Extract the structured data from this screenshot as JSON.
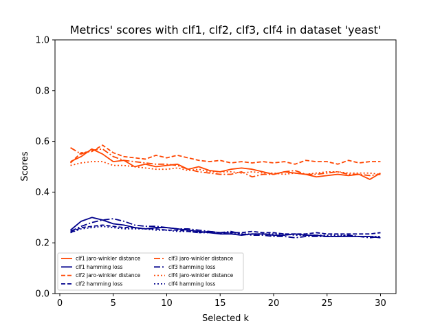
{
  "chart_data": {
    "type": "line",
    "title": "Metrics' scores with clf1, clf2, clf3, clf4 in dataset 'yeast'",
    "xlabel": "Selected k",
    "ylabel": "Scores",
    "xlim": [
      -0.45,
      31.45
    ],
    "ylim": [
      0,
      1.0
    ],
    "xticks": [
      0,
      5,
      10,
      15,
      20,
      25,
      30
    ],
    "yticks": [
      "0.0",
      "0.2",
      "0.4",
      "0.6",
      "0.8",
      "1.0"
    ],
    "legend_position": "lower-left",
    "x": [
      1,
      2,
      3,
      4,
      5,
      6,
      7,
      8,
      9,
      10,
      11,
      12,
      13,
      14,
      15,
      16,
      17,
      18,
      19,
      20,
      21,
      22,
      23,
      24,
      25,
      26,
      27,
      28,
      29,
      30
    ],
    "series": [
      {
        "name": "clf1 jaro-winkler distance",
        "color": "#ff4500",
        "style": "solid",
        "values": [
          0.52,
          0.54,
          0.57,
          0.55,
          0.52,
          0.525,
          0.5,
          0.51,
          0.5,
          0.505,
          0.51,
          0.49,
          0.5,
          0.485,
          0.48,
          0.49,
          0.495,
          0.49,
          0.48,
          0.47,
          0.48,
          0.475,
          0.47,
          0.46,
          0.465,
          0.47,
          0.465,
          0.47,
          0.45,
          0.475
        ]
      },
      {
        "name": "clf1 hamming loss",
        "color": "#00008b",
        "style": "solid",
        "values": [
          0.25,
          0.285,
          0.3,
          0.29,
          0.275,
          0.27,
          0.26,
          0.255,
          0.26,
          0.26,
          0.255,
          0.25,
          0.245,
          0.24,
          0.235,
          0.235,
          0.23,
          0.235,
          0.235,
          0.23,
          0.23,
          0.235,
          0.23,
          0.23,
          0.225,
          0.225,
          0.225,
          0.225,
          0.225,
          0.22
        ]
      },
      {
        "name": "clf2 jaro-winkler distance",
        "color": "#ff4500",
        "style": "dashed",
        "values": [
          0.515,
          0.555,
          0.56,
          0.585,
          0.555,
          0.54,
          0.535,
          0.53,
          0.545,
          0.535,
          0.545,
          0.535,
          0.525,
          0.52,
          0.525,
          0.515,
          0.52,
          0.515,
          0.52,
          0.515,
          0.52,
          0.51,
          0.525,
          0.52,
          0.52,
          0.51,
          0.525,
          0.515,
          0.52,
          0.52
        ]
      },
      {
        "name": "clf2 hamming loss",
        "color": "#00008b",
        "style": "dashed",
        "values": [
          0.24,
          0.26,
          0.265,
          0.27,
          0.265,
          0.26,
          0.26,
          0.255,
          0.255,
          0.25,
          0.25,
          0.245,
          0.24,
          0.245,
          0.24,
          0.24,
          0.24,
          0.245,
          0.24,
          0.24,
          0.235,
          0.235,
          0.235,
          0.24,
          0.235,
          0.235,
          0.235,
          0.235,
          0.235,
          0.24
        ]
      },
      {
        "name": "clf3 jaro-winkler distance",
        "color": "#ff4500",
        "style": "dashdot",
        "values": [
          0.575,
          0.55,
          0.565,
          0.57,
          0.54,
          0.525,
          0.52,
          0.515,
          0.51,
          0.51,
          0.505,
          0.49,
          0.48,
          0.475,
          0.47,
          0.47,
          0.48,
          0.46,
          0.47,
          0.47,
          0.48,
          0.485,
          0.47,
          0.47,
          0.475,
          0.48,
          0.47,
          0.47,
          0.465,
          0.47
        ]
      },
      {
        "name": "clf3 hamming loss",
        "color": "#00008b",
        "style": "dashdot",
        "values": [
          0.245,
          0.265,
          0.28,
          0.29,
          0.295,
          0.285,
          0.27,
          0.265,
          0.265,
          0.26,
          0.255,
          0.255,
          0.25,
          0.245,
          0.24,
          0.245,
          0.235,
          0.23,
          0.23,
          0.225,
          0.225,
          0.22,
          0.225,
          0.225,
          0.225,
          0.225,
          0.23,
          0.225,
          0.22,
          0.225
        ]
      },
      {
        "name": "clf4 jaro-winkler distance",
        "color": "#ff4500",
        "style": "dotted",
        "values": [
          0.505,
          0.515,
          0.52,
          0.52,
          0.505,
          0.505,
          0.5,
          0.495,
          0.49,
          0.49,
          0.495,
          0.485,
          0.49,
          0.48,
          0.48,
          0.48,
          0.475,
          0.48,
          0.475,
          0.475,
          0.47,
          0.475,
          0.47,
          0.475,
          0.48,
          0.48,
          0.475,
          0.475,
          0.475,
          0.47
        ]
      },
      {
        "name": "clf4 hamming loss",
        "color": "#00008b",
        "style": "dotted",
        "values": [
          0.24,
          0.255,
          0.26,
          0.265,
          0.26,
          0.255,
          0.255,
          0.255,
          0.25,
          0.25,
          0.245,
          0.245,
          0.24,
          0.24,
          0.24,
          0.24,
          0.235,
          0.235,
          0.235,
          0.235,
          0.235,
          0.23,
          0.23,
          0.23,
          0.23,
          0.23,
          0.23,
          0.225,
          0.225,
          0.225
        ]
      }
    ]
  }
}
